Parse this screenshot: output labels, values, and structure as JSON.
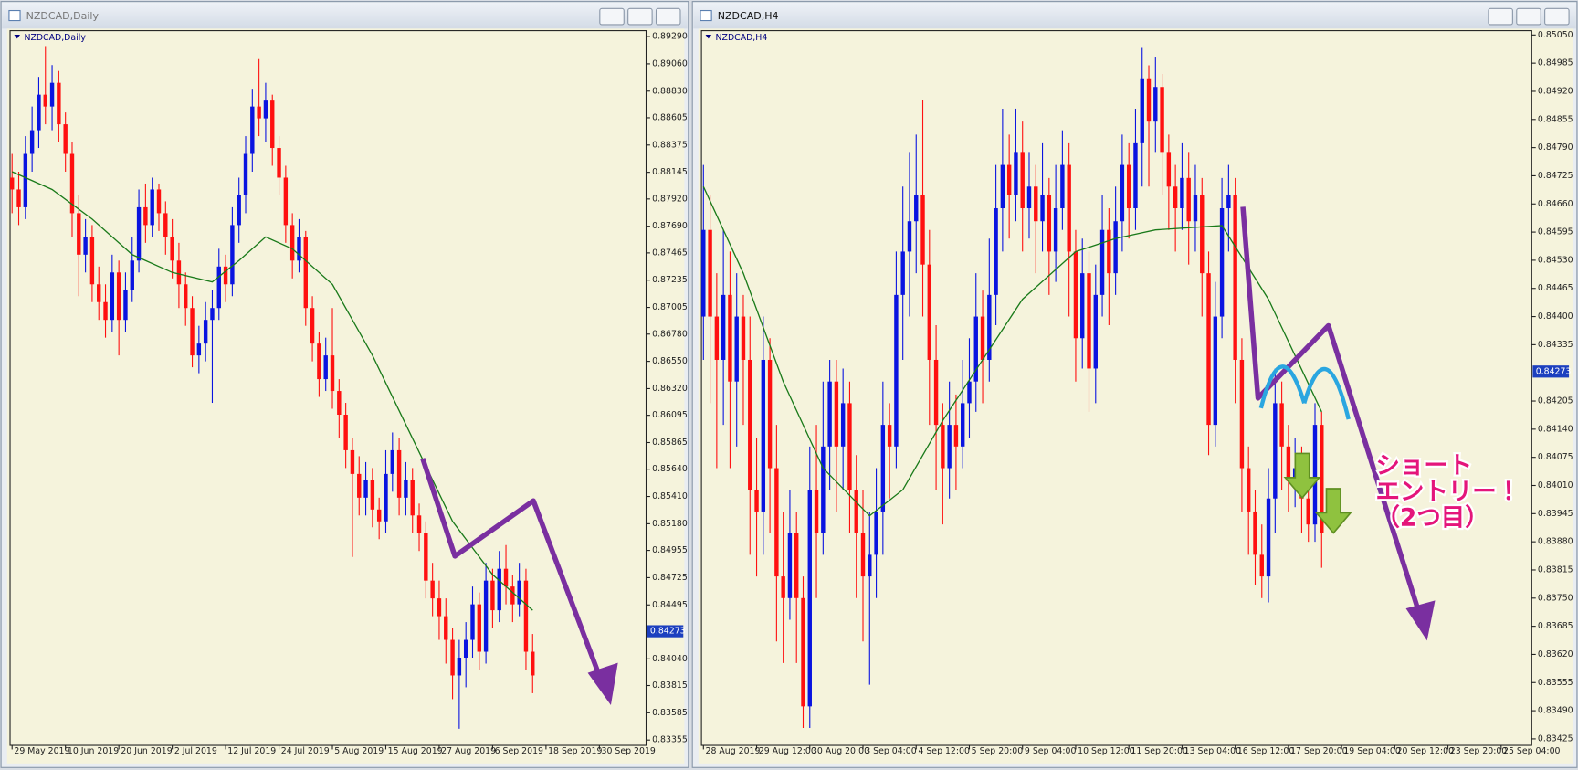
{
  "chart_data": [
    {
      "type": "candlestick",
      "title": "NZDCAD,Daily",
      "up_color": "#0a14e0",
      "down_color": "#ff1010",
      "open": [
        0.881,
        0.88,
        0.8785,
        0.883,
        0.885,
        0.888,
        0.887,
        0.889,
        0.8855,
        0.883,
        0.878,
        0.8745,
        0.876,
        0.872,
        0.8705,
        0.869,
        0.873,
        0.869,
        0.8715,
        0.874,
        0.8785,
        0.877,
        0.88,
        0.878,
        0.876,
        0.874,
        0.872,
        0.87,
        0.866,
        0.867,
        0.869,
        0.87,
        0.8735,
        0.872,
        0.877,
        0.8795,
        0.883,
        0.887,
        0.886,
        0.8875,
        0.8835,
        0.881,
        0.877,
        0.874,
        0.876,
        0.87,
        0.867,
        0.864,
        0.866,
        0.863,
        0.861,
        0.858,
        0.856,
        0.854,
        0.8555,
        0.853,
        0.852,
        0.856,
        0.858,
        0.854,
        0.8555,
        0.8525,
        0.851,
        0.847,
        0.8455,
        0.844,
        0.842,
        0.839,
        0.8405,
        0.842,
        0.845,
        0.841,
        0.847,
        0.8445,
        0.848,
        0.8465,
        0.845,
        0.847,
        0.841
      ],
      "high": [
        0.883,
        0.8815,
        0.8845,
        0.887,
        0.8895,
        0.8921,
        0.8905,
        0.89,
        0.8865,
        0.884,
        0.8795,
        0.8775,
        0.877,
        0.8735,
        0.872,
        0.8745,
        0.874,
        0.873,
        0.876,
        0.88,
        0.8805,
        0.881,
        0.8805,
        0.879,
        0.8775,
        0.8755,
        0.873,
        0.871,
        0.8685,
        0.8705,
        0.8715,
        0.875,
        0.8745,
        0.8785,
        0.881,
        0.8845,
        0.8885,
        0.891,
        0.889,
        0.888,
        0.8845,
        0.882,
        0.878,
        0.8775,
        0.8765,
        0.871,
        0.868,
        0.8675,
        0.87,
        0.864,
        0.862,
        0.859,
        0.8575,
        0.857,
        0.8565,
        0.854,
        0.858,
        0.8595,
        0.859,
        0.857,
        0.8565,
        0.8535,
        0.852,
        0.8485,
        0.847,
        0.8455,
        0.843,
        0.842,
        0.8435,
        0.8465,
        0.846,
        0.8485,
        0.848,
        0.8495,
        0.85,
        0.8475,
        0.8485,
        0.848,
        0.8425
      ],
      "low": [
        0.878,
        0.877,
        0.8775,
        0.8815,
        0.8835,
        0.8855,
        0.885,
        0.884,
        0.8815,
        0.876,
        0.871,
        0.873,
        0.8705,
        0.869,
        0.8675,
        0.868,
        0.866,
        0.868,
        0.8705,
        0.873,
        0.8755,
        0.876,
        0.8765,
        0.8745,
        0.8725,
        0.87,
        0.8685,
        0.865,
        0.8645,
        0.8655,
        0.862,
        0.869,
        0.8705,
        0.871,
        0.8755,
        0.878,
        0.8815,
        0.8845,
        0.884,
        0.882,
        0.8795,
        0.8755,
        0.8725,
        0.873,
        0.8685,
        0.8655,
        0.8625,
        0.863,
        0.8615,
        0.859,
        0.8565,
        0.849,
        0.8525,
        0.8525,
        0.8515,
        0.8505,
        0.851,
        0.8545,
        0.8525,
        0.8525,
        0.851,
        0.8495,
        0.8455,
        0.844,
        0.842,
        0.84,
        0.837,
        0.8345,
        0.838,
        0.8405,
        0.8395,
        0.84,
        0.843,
        0.8435,
        0.845,
        0.8435,
        0.844,
        0.8395,
        0.8375
      ],
      "close": [
        0.88,
        0.8785,
        0.883,
        0.885,
        0.888,
        0.887,
        0.889,
        0.8855,
        0.883,
        0.878,
        0.8745,
        0.876,
        0.872,
        0.8705,
        0.869,
        0.873,
        0.869,
        0.8715,
        0.874,
        0.8785,
        0.877,
        0.88,
        0.878,
        0.876,
        0.874,
        0.872,
        0.87,
        0.866,
        0.867,
        0.869,
        0.87,
        0.8735,
        0.872,
        0.877,
        0.8795,
        0.883,
        0.887,
        0.886,
        0.8875,
        0.8835,
        0.881,
        0.877,
        0.874,
        0.876,
        0.87,
        0.867,
        0.864,
        0.866,
        0.863,
        0.861,
        0.858,
        0.856,
        0.854,
        0.8555,
        0.853,
        0.852,
        0.856,
        0.858,
        0.854,
        0.8555,
        0.8525,
        0.851,
        0.847,
        0.8455,
        0.844,
        0.842,
        0.839,
        0.8405,
        0.842,
        0.845,
        0.841,
        0.847,
        0.8445,
        0.848,
        0.8465,
        0.845,
        0.847,
        0.841,
        0.839
      ],
      "ma": {
        "color": "#1a7a1a",
        "x": [
          0,
          6,
          12,
          18,
          24,
          30,
          34,
          38,
          42,
          48,
          54,
          60,
          66,
          72,
          78
        ],
        "values": [
          0.8815,
          0.88,
          0.8775,
          0.8745,
          0.873,
          0.8722,
          0.874,
          0.876,
          0.875,
          0.872,
          0.866,
          0.859,
          0.852,
          0.8475,
          0.8445
        ]
      },
      "xlim": [
        -0.3,
        95
      ],
      "xticks": [
        {
          "value": 0,
          "label": "29 May 2019"
        },
        {
          "value": 8,
          "label": "10 Jun 2019"
        },
        {
          "value": 16,
          "label": "20 Jun 2019"
        },
        {
          "value": 24,
          "label": "2 Jul 2019"
        },
        {
          "value": 32,
          "label": "12 Jul 2019"
        },
        {
          "value": 40,
          "label": "24 Jul 2019"
        },
        {
          "value": 48,
          "label": "5 Aug 2019"
        },
        {
          "value": 56,
          "label": "15 Aug 2019"
        },
        {
          "value": 64,
          "label": "27 Aug 2019"
        },
        {
          "value": 72,
          "label": "6 Sep 2019"
        },
        {
          "value": 80,
          "label": "18 Sep 2019"
        },
        {
          "value": 88,
          "label": "30 Sep 2019"
        }
      ],
      "ylim": [
        0.8331,
        0.8934
      ],
      "yticks": [
        {
          "value": 0.8929,
          "label": "0.89290"
        },
        {
          "value": 0.8906,
          "label": "0.89060"
        },
        {
          "value": 0.8883,
          "label": "0.88830"
        },
        {
          "value": 0.88605,
          "label": "0.88605"
        },
        {
          "value": 0.88375,
          "label": "0.88375"
        },
        {
          "value": 0.88145,
          "label": "0.88145"
        },
        {
          "value": 0.8792,
          "label": "0.87920"
        },
        {
          "value": 0.8769,
          "label": "0.87690"
        },
        {
          "value": 0.87465,
          "label": "0.87465"
        },
        {
          "value": 0.87235,
          "label": "0.87235"
        },
        {
          "value": 0.87005,
          "label": "0.87005"
        },
        {
          "value": 0.8678,
          "label": "0.86780"
        },
        {
          "value": 0.8655,
          "label": "0.86550"
        },
        {
          "value": 0.8632,
          "label": "0.86320"
        },
        {
          "value": 0.86095,
          "label": "0.86095"
        },
        {
          "value": 0.85865,
          "label": "0.85865"
        },
        {
          "value": 0.8564,
          "label": "0.85640"
        },
        {
          "value": 0.8541,
          "label": "0.85410"
        },
        {
          "value": 0.8518,
          "label": "0.85180"
        },
        {
          "value": 0.84955,
          "label": "0.84955"
        },
        {
          "value": 0.84725,
          "label": "0.84725"
        },
        {
          "value": 0.84495,
          "label": "0.84495"
        },
        {
          "value": 0.8404,
          "label": "0.84040"
        },
        {
          "value": 0.83815,
          "label": "0.83815"
        },
        {
          "value": 0.83585,
          "label": "0.83585"
        },
        {
          "value": 0.83355,
          "label": "0.83355"
        }
      ],
      "current": {
        "value": 0.84273,
        "label": "0.84273"
      }
    },
    {
      "type": "candlestick",
      "title": "NZDCAD,H4",
      "up_color": "#0a14e0",
      "down_color": "#ff1010",
      "open": [
        0.844,
        0.846,
        0.844,
        0.843,
        0.8445,
        0.8425,
        0.844,
        0.843,
        0.84,
        0.8395,
        0.843,
        0.8405,
        0.838,
        0.8375,
        0.839,
        0.8375,
        0.835,
        0.84,
        0.839,
        0.841,
        0.8425,
        0.841,
        0.842,
        0.84,
        0.839,
        0.838,
        0.8385,
        0.8395,
        0.8415,
        0.841,
        0.8445,
        0.8455,
        0.8462,
        0.8468,
        0.8452,
        0.843,
        0.8415,
        0.8405,
        0.8415,
        0.841,
        0.842,
        0.8425,
        0.844,
        0.843,
        0.8445,
        0.8465,
        0.8475,
        0.8468,
        0.8478,
        0.8465,
        0.847,
        0.8462,
        0.8468,
        0.8455,
        0.8465,
        0.8475,
        0.8455,
        0.8435,
        0.845,
        0.8428,
        0.8445,
        0.846,
        0.845,
        0.8462,
        0.8475,
        0.8465,
        0.848,
        0.8495,
        0.8485,
        0.8493,
        0.8478,
        0.847,
        0.8465,
        0.8472,
        0.8462,
        0.8468,
        0.845,
        0.8415,
        0.844,
        0.8465,
        0.8468,
        0.843,
        0.8405,
        0.8395,
        0.8385,
        0.838,
        0.8398,
        0.842,
        0.841,
        0.8402,
        0.8405,
        0.8398,
        0.8392,
        0.8415
      ],
      "high": [
        0.8475,
        0.8468,
        0.845,
        0.846,
        0.8455,
        0.845,
        0.8445,
        0.844,
        0.8412,
        0.844,
        0.8435,
        0.8415,
        0.8395,
        0.84,
        0.8395,
        0.838,
        0.841,
        0.8415,
        0.8425,
        0.843,
        0.843,
        0.8428,
        0.8425,
        0.8408,
        0.84,
        0.8395,
        0.8405,
        0.8425,
        0.842,
        0.8455,
        0.847,
        0.8478,
        0.8482,
        0.849,
        0.846,
        0.8438,
        0.842,
        0.8425,
        0.8422,
        0.843,
        0.8435,
        0.845,
        0.8446,
        0.8458,
        0.8475,
        0.8488,
        0.8482,
        0.8488,
        0.8485,
        0.8478,
        0.8475,
        0.848,
        0.8472,
        0.8475,
        0.8483,
        0.848,
        0.846,
        0.8458,
        0.8455,
        0.8452,
        0.8468,
        0.8465,
        0.847,
        0.8482,
        0.848,
        0.8488,
        0.8502,
        0.8498,
        0.85,
        0.8496,
        0.8482,
        0.8475,
        0.848,
        0.8478,
        0.8475,
        0.8472,
        0.8455,
        0.8448,
        0.8472,
        0.8475,
        0.8472,
        0.8435,
        0.841,
        0.84,
        0.8392,
        0.8405,
        0.8428,
        0.8425,
        0.8415,
        0.8412,
        0.841,
        0.8405,
        0.842,
        0.8418
      ],
      "low": [
        0.843,
        0.842,
        0.8405,
        0.8415,
        0.8405,
        0.841,
        0.8415,
        0.8385,
        0.838,
        0.8385,
        0.839,
        0.8365,
        0.836,
        0.837,
        0.836,
        0.8345,
        0.8345,
        0.8375,
        0.8385,
        0.84,
        0.8395,
        0.84,
        0.839,
        0.8375,
        0.8365,
        0.8355,
        0.8375,
        0.8385,
        0.8398,
        0.8405,
        0.843,
        0.844,
        0.845,
        0.844,
        0.8415,
        0.84,
        0.8392,
        0.8398,
        0.84,
        0.8405,
        0.8412,
        0.8418,
        0.842,
        0.8425,
        0.8438,
        0.8455,
        0.8458,
        0.8462,
        0.8455,
        0.8458,
        0.845,
        0.8455,
        0.8445,
        0.8448,
        0.846,
        0.844,
        0.8425,
        0.8428,
        0.8418,
        0.842,
        0.844,
        0.8438,
        0.8445,
        0.8455,
        0.8458,
        0.846,
        0.847,
        0.847,
        0.8478,
        0.8468,
        0.846,
        0.8455,
        0.846,
        0.8452,
        0.8455,
        0.844,
        0.8408,
        0.841,
        0.8435,
        0.8455,
        0.842,
        0.8395,
        0.8385,
        0.8378,
        0.8375,
        0.8374,
        0.839,
        0.84,
        0.8395,
        0.8396,
        0.839,
        0.8388,
        0.8388,
        0.8382
      ],
      "close": [
        0.846,
        0.844,
        0.843,
        0.8445,
        0.8425,
        0.844,
        0.843,
        0.84,
        0.8395,
        0.843,
        0.8405,
        0.838,
        0.8375,
        0.839,
        0.8375,
        0.835,
        0.84,
        0.839,
        0.841,
        0.8425,
        0.841,
        0.842,
        0.84,
        0.839,
        0.838,
        0.8385,
        0.8395,
        0.8415,
        0.841,
        0.8445,
        0.8455,
        0.8462,
        0.8468,
        0.8452,
        0.843,
        0.8415,
        0.8405,
        0.8415,
        0.841,
        0.842,
        0.8425,
        0.844,
        0.843,
        0.8445,
        0.8465,
        0.8475,
        0.8468,
        0.8478,
        0.8465,
        0.847,
        0.8462,
        0.8468,
        0.8455,
        0.8465,
        0.8475,
        0.8455,
        0.8435,
        0.845,
        0.8428,
        0.8445,
        0.846,
        0.845,
        0.8462,
        0.8475,
        0.8465,
        0.848,
        0.8495,
        0.8485,
        0.8493,
        0.8478,
        0.847,
        0.8465,
        0.8472,
        0.8462,
        0.8468,
        0.845,
        0.8415,
        0.844,
        0.8465,
        0.8468,
        0.843,
        0.8405,
        0.8395,
        0.8385,
        0.838,
        0.8398,
        0.842,
        0.841,
        0.8402,
        0.8405,
        0.8398,
        0.8392,
        0.8415,
        0.839
      ],
      "ma": {
        "color": "#1a7a1a",
        "x": [
          0,
          6,
          12,
          18,
          25,
          30,
          36,
          42,
          48,
          56,
          62,
          68,
          78,
          85,
          93
        ],
        "values": [
          0.847,
          0.845,
          0.8425,
          0.8405,
          0.8394,
          0.84,
          0.8416,
          0.843,
          0.8444,
          0.8455,
          0.8458,
          0.846,
          0.8461,
          0.8444,
          0.8418
        ]
      },
      "xlim": [
        -0.3,
        124.6
      ],
      "xticks": [
        {
          "value": 0,
          "label": "28 Aug 2019"
        },
        {
          "value": 8,
          "label": "29 Aug 12:00"
        },
        {
          "value": 16,
          "label": "30 Aug 20:00"
        },
        {
          "value": 24,
          "label": "3 Sep 04:00"
        },
        {
          "value": 32,
          "label": "4 Sep 12:00"
        },
        {
          "value": 40,
          "label": "5 Sep 20:00"
        },
        {
          "value": 48,
          "label": "9 Sep 04:00"
        },
        {
          "value": 56,
          "label": "10 Sep 12:00"
        },
        {
          "value": 64,
          "label": "11 Sep 20:00"
        },
        {
          "value": 72,
          "label": "13 Sep 04:00"
        },
        {
          "value": 80,
          "label": "16 Sep 12:00"
        },
        {
          "value": 88,
          "label": "17 Sep 20:00"
        },
        {
          "value": 96,
          "label": "19 Sep 04:00"
        },
        {
          "value": 104,
          "label": "20 Sep 12:00"
        },
        {
          "value": 112,
          "label": "23 Sep 20:00"
        },
        {
          "value": 120,
          "label": "25 Sep 04:00"
        }
      ],
      "ylim": [
        0.8341,
        0.8506
      ],
      "yticks": [
        {
          "value": 0.8505,
          "label": "0.85050"
        },
        {
          "value": 0.84985,
          "label": "0.84985"
        },
        {
          "value": 0.8492,
          "label": "0.84920"
        },
        {
          "value": 0.84855,
          "label": "0.84855"
        },
        {
          "value": 0.8479,
          "label": "0.84790"
        },
        {
          "value": 0.84725,
          "label": "0.84725"
        },
        {
          "value": 0.8466,
          "label": "0.84660"
        },
        {
          "value": 0.84595,
          "label": "0.84595"
        },
        {
          "value": 0.8453,
          "label": "0.84530"
        },
        {
          "value": 0.84465,
          "label": "0.84465"
        },
        {
          "value": 0.844,
          "label": "0.84400"
        },
        {
          "value": 0.84335,
          "label": "0.84335"
        },
        {
          "value": 0.84205,
          "label": "0.84205"
        },
        {
          "value": 0.8414,
          "label": "0.84140"
        },
        {
          "value": 0.84075,
          "label": "0.84075"
        },
        {
          "value": 0.8401,
          "label": "0.84010"
        },
        {
          "value": 0.83945,
          "label": "0.83945"
        },
        {
          "value": 0.8388,
          "label": "0.83880"
        },
        {
          "value": 0.83815,
          "label": "0.83815"
        },
        {
          "value": 0.8375,
          "label": "0.83750"
        },
        {
          "value": 0.83685,
          "label": "0.83685"
        },
        {
          "value": 0.8362,
          "label": "0.83620"
        },
        {
          "value": 0.83555,
          "label": "0.83555"
        },
        {
          "value": 0.8349,
          "label": "0.83490"
        },
        {
          "value": 0.83425,
          "label": "0.83425"
        }
      ],
      "current": {
        "value": 0.84273,
        "label": "0.84273"
      },
      "annotation": [
        "ショート",
        "エントリー！",
        "（2つ目）"
      ]
    }
  ]
}
